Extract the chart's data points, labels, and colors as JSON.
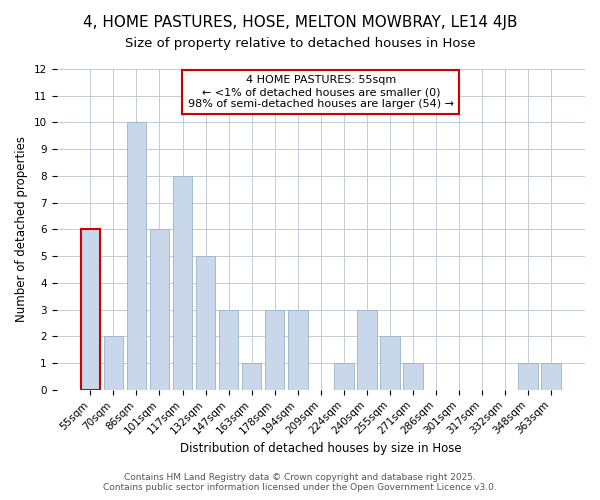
{
  "title": "4, HOME PASTURES, HOSE, MELTON MOWBRAY, LE14 4JB",
  "subtitle": "Size of property relative to detached houses in Hose",
  "categories": [
    "55sqm",
    "70sqm",
    "86sqm",
    "101sqm",
    "117sqm",
    "132sqm",
    "147sqm",
    "163sqm",
    "178sqm",
    "194sqm",
    "209sqm",
    "224sqm",
    "240sqm",
    "255sqm",
    "271sqm",
    "286sqm",
    "301sqm",
    "317sqm",
    "332sqm",
    "348sqm",
    "363sqm"
  ],
  "values": [
    6,
    2,
    10,
    6,
    8,
    5,
    3,
    1,
    3,
    3,
    0,
    1,
    3,
    2,
    1,
    0,
    0,
    0,
    0,
    1,
    1
  ],
  "bar_color": "#c8d8ea",
  "bar_edge_color": "#9ab4cc",
  "highlight_bar_index": 0,
  "highlight_bar_edge_color": "#cc0000",
  "xlabel": "Distribution of detached houses by size in Hose",
  "ylabel": "Number of detached properties",
  "ylim": [
    0,
    12
  ],
  "yticks": [
    0,
    1,
    2,
    3,
    4,
    5,
    6,
    7,
    8,
    9,
    10,
    11,
    12
  ],
  "annotation_title": "4 HOME PASTURES: 55sqm",
  "annotation_line1": "← <1% of detached houses are smaller (0)",
  "annotation_line2": "98% of semi-detached houses are larger (54) →",
  "annotation_box_color": "#ffffff",
  "annotation_box_edge_color": "#cc0000",
  "footer_line1": "Contains HM Land Registry data © Crown copyright and database right 2025.",
  "footer_line2": "Contains public sector information licensed under the Open Government Licence v3.0.",
  "background_color": "#ffffff",
  "grid_color": "#c0ccd8",
  "title_fontsize": 11,
  "subtitle_fontsize": 9.5,
  "axis_label_fontsize": 8.5,
  "tick_fontsize": 7.5,
  "annotation_fontsize": 8,
  "footer_fontsize": 6.5
}
